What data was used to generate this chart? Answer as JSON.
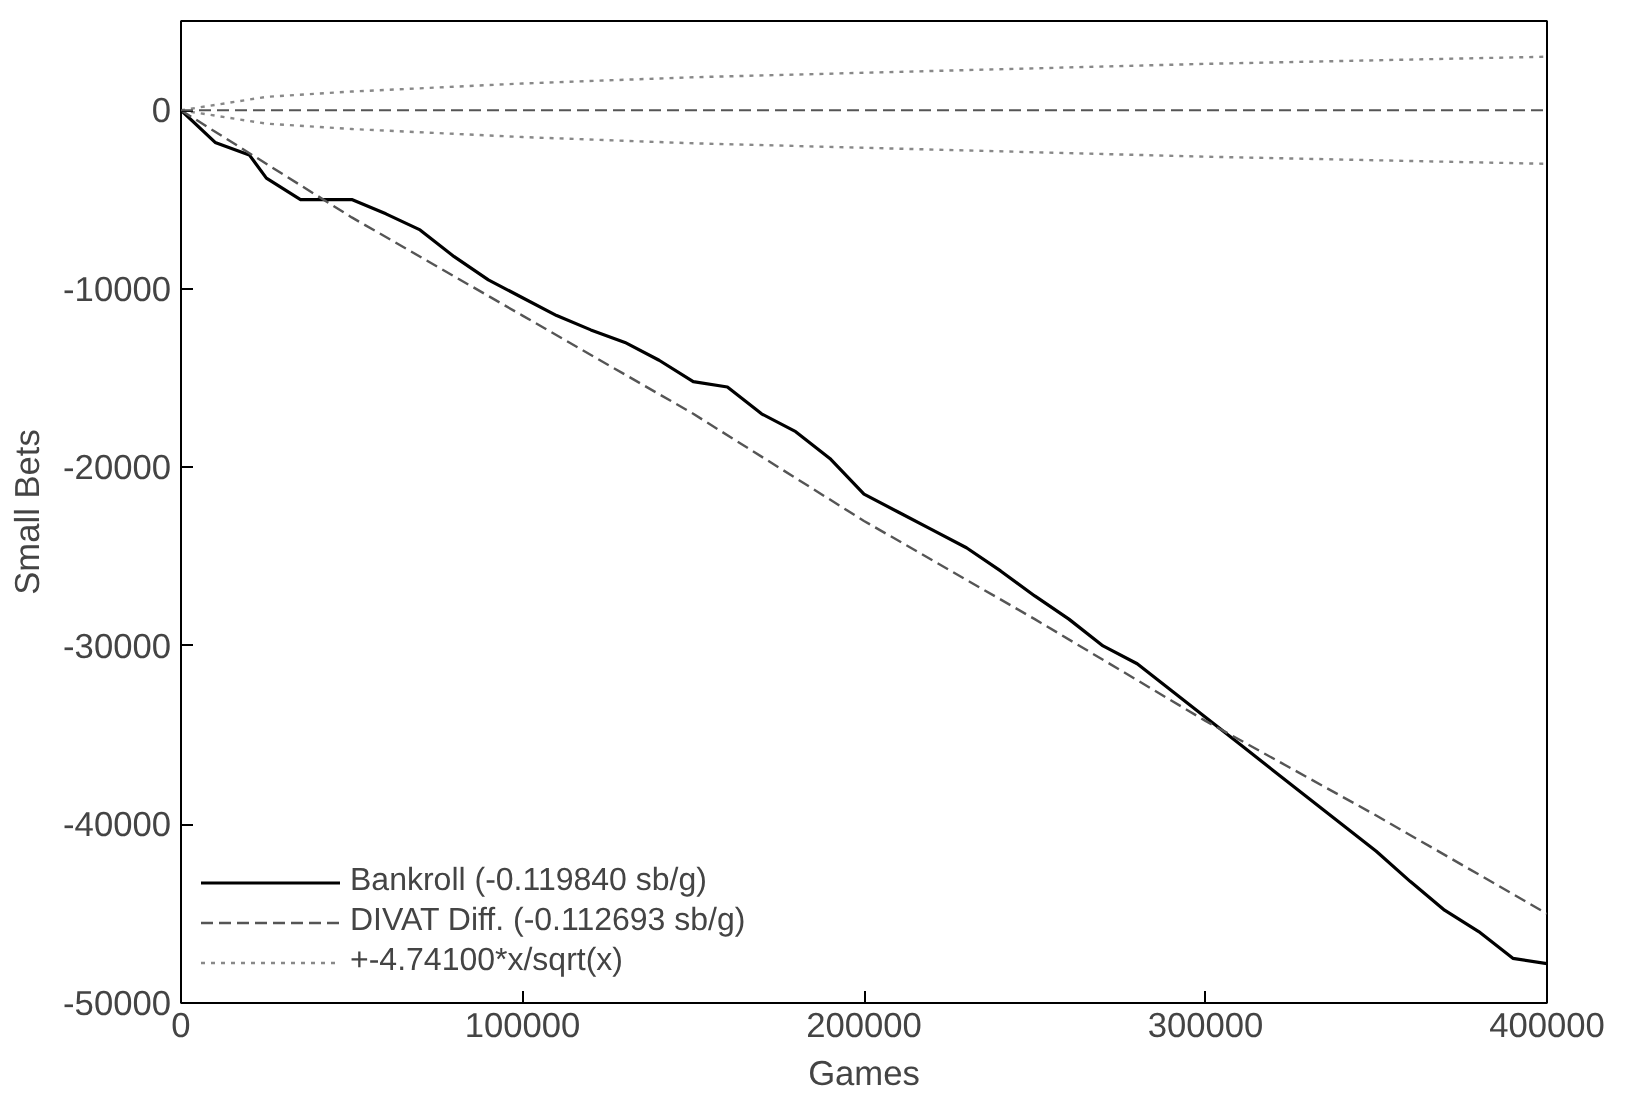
{
  "chart_data": {
    "type": "line",
    "xlabel": "Games",
    "ylabel": "Small Bets",
    "xlim": [
      0,
      400000
    ],
    "xticks": [
      0,
      100000,
      200000,
      300000,
      400000
    ],
    "ylim": [
      -50000,
      5000
    ],
    "yticks": [
      0,
      -10000,
      -20000,
      -30000,
      -40000,
      -50000
    ],
    "grid": false,
    "legend": "bottom left",
    "marker": "none",
    "ref_lines": [
      {
        "axis": "y",
        "value": 0,
        "color": "#555555",
        "line_style": "dashed"
      }
    ],
    "series": [
      {
        "name": "Bankroll (-0.119840 sb/g)",
        "color": "#000000",
        "line_style": "solid",
        "x": [
          0,
          10000,
          20000,
          25000,
          35000,
          50000,
          60000,
          70000,
          80000,
          90000,
          100000,
          110000,
          120000,
          130000,
          140000,
          150000,
          160000,
          170000,
          180000,
          190000,
          200000,
          210000,
          220000,
          230000,
          240000,
          250000,
          260000,
          270000,
          280000,
          290000,
          300000,
          310000,
          320000,
          330000,
          340000,
          350000,
          360000,
          370000,
          380000,
          390000,
          400000
        ],
        "values": [
          0,
          -1800,
          -2500,
          -3800,
          -5000,
          -5000,
          -5800,
          -6700,
          -8200,
          -9500,
          -10500,
          -11500,
          -12300,
          -13000,
          -14000,
          -15200,
          -15500,
          -17000,
          -18000,
          -19500,
          -21500,
          -22500,
          -23500,
          -24500,
          -25800,
          -27200,
          -28500,
          -30000,
          -31000,
          -32500,
          -34000,
          -35500,
          -37000,
          -38500,
          -40000,
          -41500,
          -43200,
          -44800,
          -46000,
          -47500,
          -47800
        ]
      },
      {
        "name": "DIVAT Diff. (-0.112693 sb/g)",
        "color": "#555555",
        "line_style": "dashed",
        "x": [
          0,
          50000,
          100000,
          150000,
          200000,
          250000,
          300000,
          350000,
          400000
        ],
        "values": [
          0,
          -6000,
          -11500,
          -17000,
          -23000,
          -28500,
          -34200,
          -39500,
          -45000
        ]
      },
      {
        "name": "+-4.74100*x/sqrt(x)",
        "color": "#888888",
        "line_style": "dotted",
        "x": [
          0,
          25000,
          50000,
          100000,
          150000,
          200000,
          250000,
          300000,
          350000,
          400000
        ],
        "values": [
          0,
          750,
          1050,
          1500,
          1850,
          2100,
          2350,
          2600,
          2800,
          3000
        ]
      },
      {
        "color": "#888888",
        "line_style": "dotted",
        "x": [
          0,
          25000,
          50000,
          100000,
          150000,
          200000,
          250000,
          300000,
          350000,
          400000
        ],
        "values": [
          0,
          -750,
          -1050,
          -1500,
          -1850,
          -2100,
          -2350,
          -2600,
          -2800,
          -3000
        ]
      }
    ]
  }
}
